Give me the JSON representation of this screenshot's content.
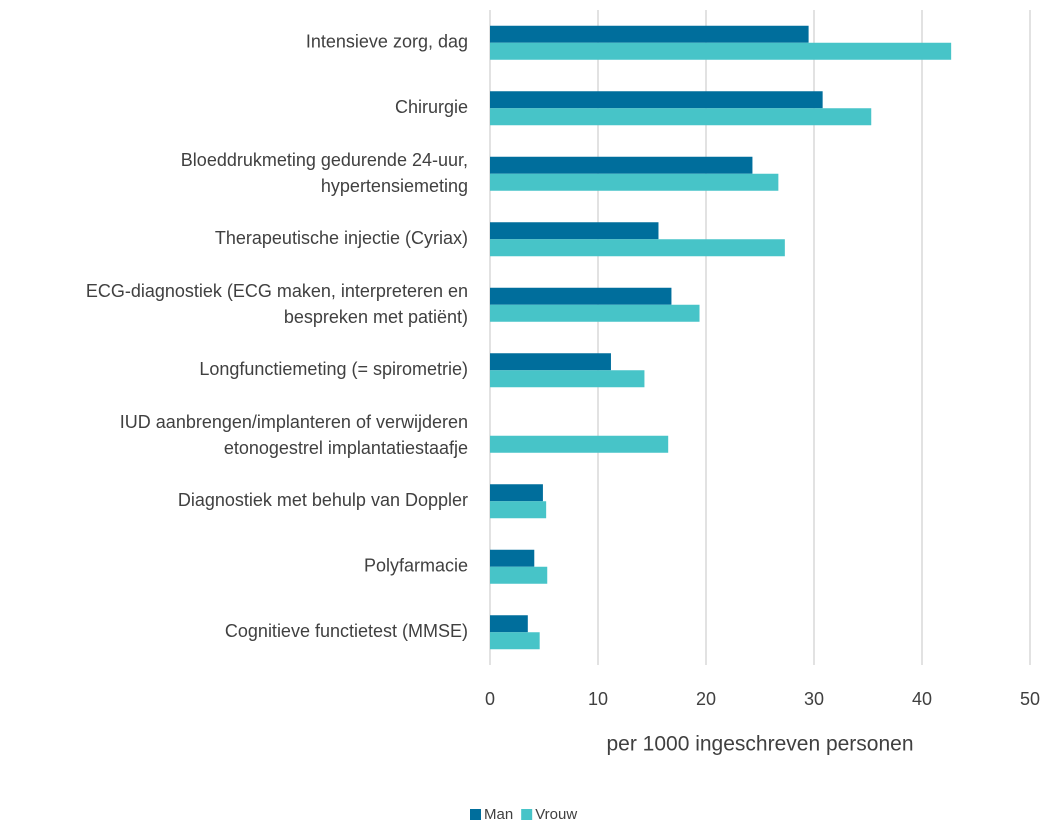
{
  "chart_data": {
    "type": "hbar",
    "categories": [
      "Intensieve zorg, dag",
      "Chirurgie",
      "Bloeddrukmeting gedurende 24-uur,\nhypertensiemeting",
      "Therapeutische injectie (Cyriax)",
      "ECG-diagnostiek (ECG maken, interpreteren en\nbespreken met patiënt)",
      "Longfunctiemeting (= spirometrie)",
      "IUD aanbrengen/implanteren of verwijderen\netonogestrel implantatiestaafje",
      "Diagnostiek met behulp van Doppler",
      "Polyfarmacie",
      "Cognitieve functietest (MMSE)"
    ],
    "series": [
      {
        "name": "Man",
        "color": "#006e9c",
        "values": [
          29.5,
          30.8,
          24.3,
          15.6,
          16.8,
          11.2,
          null,
          4.9,
          4.1,
          3.5
        ]
      },
      {
        "name": "Vrouw",
        "color": "#47c4c8",
        "values": [
          42.7,
          35.3,
          26.7,
          27.3,
          19.4,
          14.3,
          16.5,
          5.2,
          5.3,
          4.6
        ]
      }
    ],
    "xlabel": "per 1000 ingeschreven personen",
    "xlim": [
      0,
      50
    ],
    "xticks": [
      0,
      10,
      20,
      30,
      40,
      50
    ],
    "grid": true,
    "legend": "bottom"
  }
}
